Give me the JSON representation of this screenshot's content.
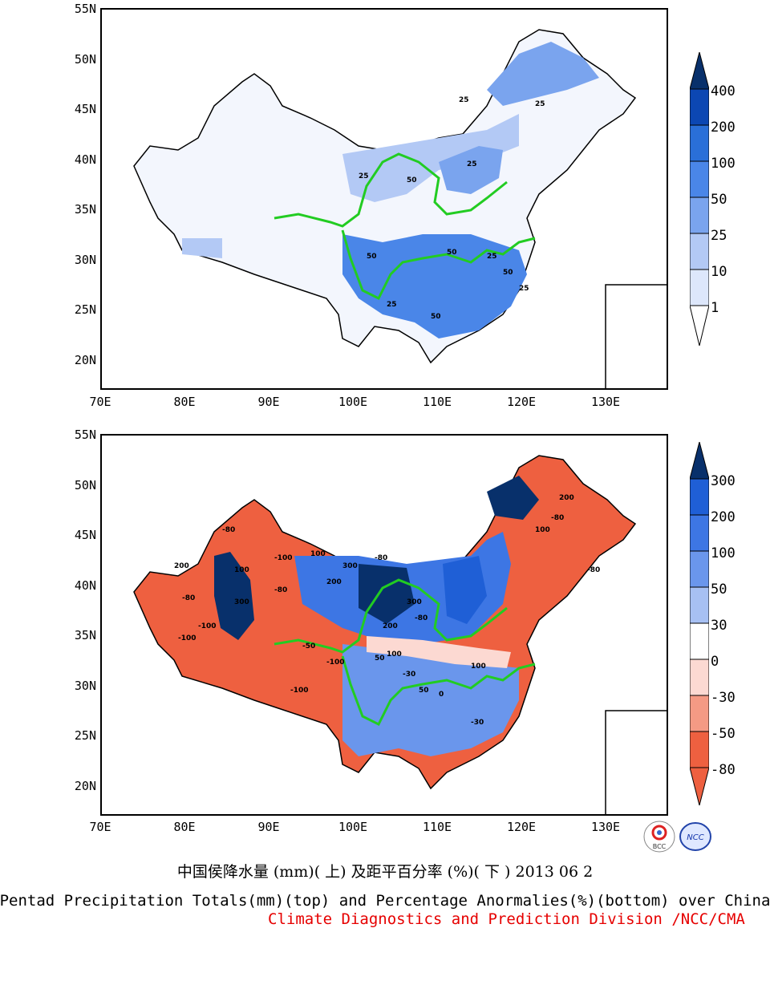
{
  "top_map": {
    "y_labels": [
      "55N",
      "50N",
      "45N",
      "40N",
      "35N",
      "30N",
      "25N",
      "20N"
    ],
    "x_labels": [
      "70E",
      "80E",
      "90E",
      "100E",
      "110E",
      "120E",
      "130E"
    ],
    "colorbar_labels": [
      "400",
      "200",
      "100",
      "50",
      "25",
      "10",
      "1"
    ],
    "colors": [
      "#08306b",
      "#0c47b3",
      "#2a6fd8",
      "#4a86e8",
      "#7aa4ee",
      "#b3c9f5",
      "#dde7fb",
      "#f3f6fd"
    ],
    "contour_labels": [
      "25",
      "25",
      "25",
      "25",
      "50",
      "50",
      "50",
      "25",
      "50",
      "25",
      "50",
      "25"
    ]
  },
  "bottom_map": {
    "y_labels": [
      "55N",
      "50N",
      "45N",
      "40N",
      "35N",
      "30N",
      "25N",
      "20N"
    ],
    "x_labels": [
      "70E",
      "80E",
      "90E",
      "100E",
      "110E",
      "120E",
      "130E"
    ],
    "colorbar_labels": [
      "300",
      "200",
      "100",
      "50",
      "30",
      "0",
      "-30",
      "-50",
      "-80"
    ],
    "colors": [
      "#08306b",
      "#1f5fd6",
      "#3d76e4",
      "#6a96ec",
      "#a7c0f3",
      "#ffffff",
      "#fcd9d2",
      "#f49a84",
      "#ee6040"
    ],
    "contour_labels": [
      "-100",
      "-80",
      "-100",
      "-80",
      "200",
      "300",
      "100",
      "-80",
      "-100",
      "300",
      "200",
      "100",
      "-80",
      "200",
      "300",
      "-100",
      "-80",
      "100",
      "50",
      "-30",
      "-100",
      "-50",
      "100",
      "50",
      "0",
      "-30",
      "-80",
      "200",
      "100",
      "-80"
    ]
  },
  "title_cn": "中国侯降水量 (mm)( 上) 及距平百分率 (%)( 下 ) 2013 06 2",
  "title_en": "Pentad Precipitation Totals(mm)(top) and Percentage Anormalies(%)(bottom) over China",
  "credit": "Climate Diagnostics and Prediction Division /NCC/CMA",
  "logos": [
    "BCC",
    "NCC"
  ]
}
